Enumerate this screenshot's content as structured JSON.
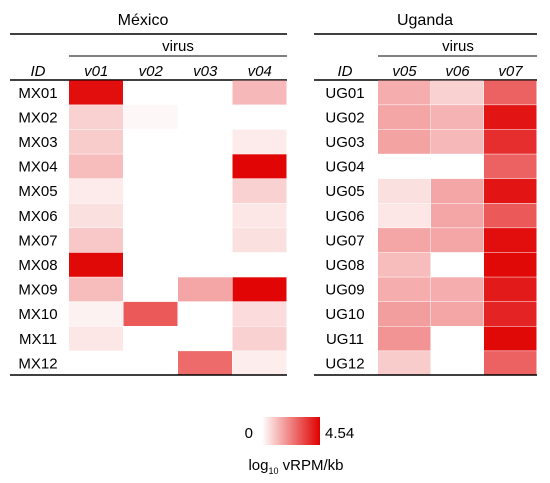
{
  "colors": {
    "low": "#ffffff",
    "high": "#e00000",
    "rule": "#000000"
  },
  "chart_data": [
    {
      "type": "heatmap",
      "title": "México",
      "group_label": "virus",
      "row_header": "ID",
      "columns": [
        "v01",
        "v02",
        "v03",
        "v04"
      ],
      "rows": [
        "MX01",
        "MX02",
        "MX03",
        "MX04",
        "MX05",
        "MX06",
        "MX07",
        "MX08",
        "MX09",
        "MX10",
        "MX11",
        "MX12"
      ],
      "values": [
        [
          0.95,
          null,
          null,
          0.28
        ],
        [
          0.18,
          0.03,
          null,
          null
        ],
        [
          0.2,
          null,
          null,
          0.08
        ],
        [
          0.26,
          null,
          null,
          0.98
        ],
        [
          0.08,
          null,
          null,
          0.18
        ],
        [
          0.12,
          null,
          null,
          0.1
        ],
        [
          0.22,
          null,
          null,
          0.12
        ],
        [
          0.97,
          null,
          null,
          null
        ],
        [
          0.26,
          null,
          0.35,
          0.98
        ],
        [
          0.05,
          0.65,
          null,
          0.14
        ],
        [
          0.1,
          null,
          null,
          0.18
        ],
        [
          null,
          null,
          0.58,
          0.07
        ]
      ],
      "colorbar": {
        "min": 0,
        "max": 4.54,
        "min_label": "0",
        "max_label": "4.54",
        "label_prefix": "log",
        "label_sub": "10",
        "label_suffix": " vRPM/kb"
      }
    },
    {
      "type": "heatmap",
      "title": "Uganda",
      "group_label": "virus",
      "row_header": "ID",
      "columns": [
        "v05",
        "v06",
        "v07"
      ],
      "rows": [
        "UG01",
        "UG02",
        "UG03",
        "UG04",
        "UG05",
        "UG06",
        "UG07",
        "UG08",
        "UG09",
        "UG10",
        "UG11",
        "UG12"
      ],
      "values": [
        [
          0.32,
          0.18,
          0.62
        ],
        [
          0.35,
          0.3,
          0.92
        ],
        [
          0.36,
          0.28,
          0.82
        ],
        [
          null,
          null,
          0.62
        ],
        [
          0.12,
          0.35,
          0.92
        ],
        [
          0.1,
          0.35,
          0.65
        ],
        [
          0.35,
          0.35,
          0.95
        ],
        [
          0.26,
          null,
          0.97
        ],
        [
          0.32,
          0.32,
          0.9
        ],
        [
          0.38,
          0.35,
          0.86
        ],
        [
          0.42,
          null,
          0.97
        ],
        [
          0.2,
          null,
          0.62
        ]
      ]
    }
  ]
}
